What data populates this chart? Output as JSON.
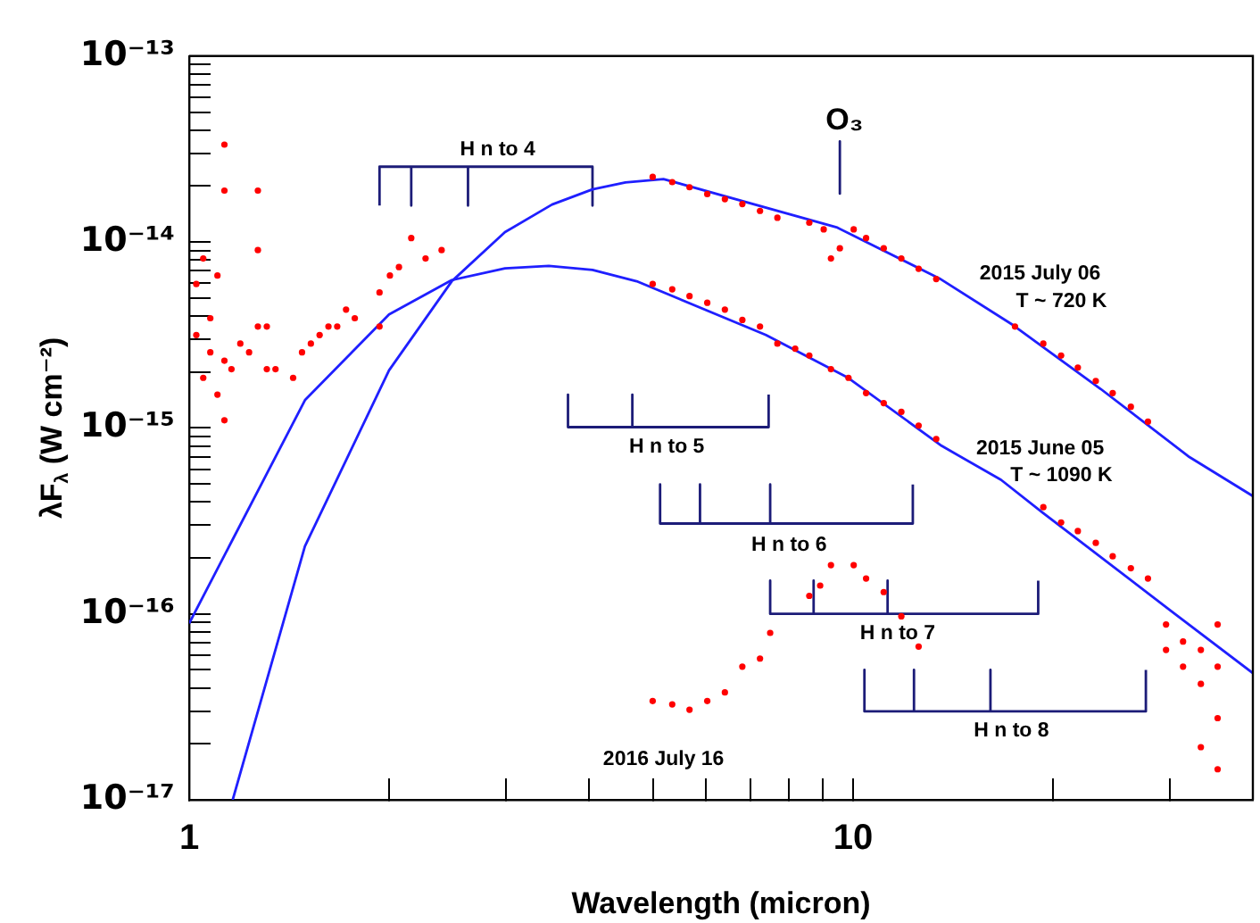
{
  "chart_data": {
    "type": "scatter",
    "xlabel": "Wavelength (micron)",
    "ylabel": "λF$_{λ}$ (W cm⁻²)",
    "log": "xy",
    "marker": "circle",
    "xlim": [
      1,
      40
    ],
    "xticks": [
      {
        "value": 1,
        "label": "1"
      },
      {
        "value": 2,
        "label": null
      },
      {
        "value": 3,
        "label": null
      },
      {
        "value": 4,
        "label": null
      },
      {
        "value": 5,
        "label": null
      },
      {
        "value": 6,
        "label": null
      },
      {
        "value": 7,
        "label": null
      },
      {
        "value": 8,
        "label": null
      },
      {
        "value": 9,
        "label": null
      },
      {
        "value": 10,
        "label": "10"
      },
      {
        "value": 20,
        "label": null
      },
      {
        "value": 30,
        "label": null
      }
    ],
    "ylim": [
      1e-17,
      1e-13
    ],
    "yticks": [
      {
        "value": 1e-17,
        "label": "10⁻¹⁷"
      },
      {
        "value": 2e-17,
        "label": null
      },
      {
        "value": 3e-17,
        "label": null
      },
      {
        "value": 4e-17,
        "label": null
      },
      {
        "value": 5e-17,
        "label": null
      },
      {
        "value": 6e-17,
        "label": null
      },
      {
        "value": 7e-17,
        "label": null
      },
      {
        "value": 8e-17,
        "label": null
      },
      {
        "value": 9e-17,
        "label": null
      },
      {
        "value": 1e-16,
        "label": "10⁻¹⁶"
      },
      {
        "value": 2e-16,
        "label": null
      },
      {
        "value": 3e-16,
        "label": null
      },
      {
        "value": 4e-16,
        "label": null
      },
      {
        "value": 5e-16,
        "label": null
      },
      {
        "value": 6e-16,
        "label": null
      },
      {
        "value": 7e-16,
        "label": null
      },
      {
        "value": 8e-16,
        "label": null
      },
      {
        "value": 9e-16,
        "label": null
      },
      {
        "value": 1e-15,
        "label": "10⁻¹⁵"
      },
      {
        "value": 2e-15,
        "label": null
      },
      {
        "value": 3e-15,
        "label": null
      },
      {
        "value": 4e-15,
        "label": null
      },
      {
        "value": 5e-15,
        "label": null
      },
      {
        "value": 6e-15,
        "label": null
      },
      {
        "value": 7e-15,
        "label": null
      },
      {
        "value": 8e-15,
        "label": null
      },
      {
        "value": 9e-15,
        "label": null
      },
      {
        "value": 1e-14,
        "label": "10⁻¹⁴"
      },
      {
        "value": 2e-14,
        "label": null
      },
      {
        "value": 3e-14,
        "label": null
      },
      {
        "value": 4e-14,
        "label": null
      },
      {
        "value": 5e-14,
        "label": null
      },
      {
        "value": 6e-14,
        "label": null
      },
      {
        "value": 7e-14,
        "label": null
      },
      {
        "value": 8e-14,
        "label": null
      },
      {
        "value": 9e-14,
        "label": null
      },
      {
        "value": 1e-13,
        "label": "10⁻¹³"
      }
    ],
    "series": [
      {
        "color": "#ff0000",
        "x": [
          1.025,
          1.025,
          1.05,
          1.05,
          1.076,
          1.076,
          1.103,
          1.103,
          1.13,
          1.13,
          1.13,
          1.13,
          1.158,
          1.194,
          1.231,
          1.269,
          1.269,
          1.269,
          1.309,
          1.309,
          1.349,
          1.434,
          1.479,
          1.525,
          1.572,
          1.621,
          1.671,
          1.723,
          1.776,
          1.935,
          1.935,
          2.006,
          2.07,
          2.16,
          2.27,
          2.4
        ],
        "values": [
          5.94e-15,
          3.16e-15,
          8.15e-15,
          1.86e-15,
          3.89e-15,
          2.55e-15,
          6.6e-15,
          1.51e-15,
          2.3e-15,
          1.1e-15,
          3.34e-14,
          1.89e-14,
          2.07e-15,
          2.84e-15,
          2.55e-15,
          1.89e-14,
          9.05e-15,
          3.51e-15,
          2.07e-15,
          3.51e-15,
          2.07e-15,
          1.86e-15,
          2.55e-15,
          2.84e-15,
          3.16e-15,
          3.51e-15,
          3.51e-15,
          4.33e-15,
          3.89e-15,
          5.35e-15,
          3.51e-15,
          6.6e-15,
          7.33e-15,
          1.05e-14,
          8.15e-15,
          9.05e-15
        ]
      },
      {
        "color": "#ff0000",
        "x": [
          4.99,
          5.34,
          5.67,
          6.03,
          6.41,
          6.81,
          7.24,
          7.69,
          8.59,
          9.03,
          9.26,
          9.55,
          10.02,
          10.46,
          11.12,
          11.82,
          12.55,
          13.34,
          17.53,
          19.34,
          20.57,
          21.8,
          23.2,
          24.6,
          26.2,
          27.8
        ],
        "values": [
          2.24e-14,
          2.1e-14,
          1.97e-14,
          1.81e-14,
          1.7e-14,
          1.6e-14,
          1.47e-14,
          1.35e-14,
          1.27e-14,
          1.17e-14,
          8.15e-15,
          9.25e-15,
          1.17e-14,
          1.05e-14,
          9.25e-15,
          8.15e-15,
          7.18e-15,
          6.32e-15,
          3.51e-15,
          2.84e-15,
          2.45e-15,
          2.11e-15,
          1.79e-15,
          1.54e-15,
          1.3e-15,
          1.08e-15
        ]
      },
      {
        "color": "#ff0000",
        "x": [
          4.99,
          5.34,
          5.67,
          6.03,
          6.41,
          6.81,
          7.24,
          7.69,
          8.18,
          8.59,
          9.26,
          9.84,
          10.46,
          11.12,
          11.82,
          12.55,
          13.34,
          19.34,
          20.57,
          21.8,
          23.2,
          24.6,
          26.2,
          27.8,
          29.6,
          29.6,
          31.4,
          31.4,
          33.4,
          33.4,
          35.4,
          35.4,
          35.4,
          33.4,
          35.4
        ],
        "values": [
          5.94e-15,
          5.57e-15,
          5.12e-15,
          4.71e-15,
          4.33e-15,
          3.81e-15,
          3.51e-15,
          2.84e-15,
          2.67e-15,
          2.45e-15,
          2.07e-15,
          1.86e-15,
          1.54e-15,
          1.36e-15,
          1.22e-15,
          1.03e-15,
          8.72e-16,
          3.75e-16,
          3.1e-16,
          2.79e-16,
          2.41e-16,
          2.04e-16,
          1.76e-16,
          1.55e-16,
          8.77e-17,
          6.4e-17,
          7.1e-17,
          5.2e-17,
          6.4e-17,
          4.2e-17,
          8.77e-17,
          5.2e-17,
          2.75e-17,
          1.92e-17,
          1.46e-17
        ]
      },
      {
        "color": "#ff0000",
        "x": [
          4.99,
          5.34,
          5.67,
          6.03,
          6.41,
          6.81,
          7.24,
          7.5,
          8.59,
          8.92,
          9.26,
          10.02,
          10.46,
          11.12,
          11.82,
          12.55
        ],
        "values": [
          3.4e-17,
          3.26e-17,
          3.05e-17,
          3.4e-17,
          3.78e-17,
          5.2e-17,
          5.75e-17,
          7.9e-17,
          1.25e-16,
          1.42e-16,
          1.83e-16,
          1.83e-16,
          1.55e-16,
          1.31e-16,
          9.7e-17,
          6.67e-17
        ]
      },
      {
        "type": "line",
        "marker": "none",
        "color": "#1f1fff",
        "x": [
          1.163,
          1.494,
          2.0,
          2.486,
          2.99,
          3.52,
          4.05,
          4.54,
          5.18,
          9.44,
          13.49,
          17.4,
          23.6,
          32.1,
          40
        ],
        "values": [
          1e-17,
          2.31e-16,
          2.04e-15,
          6.15e-15,
          1.13e-14,
          1.59e-14,
          1.92e-14,
          2.09e-14,
          2.18e-14,
          1.2e-14,
          6.37e-15,
          3.58e-15,
          1.62e-15,
          6.97e-16,
          4.3e-16
        ]
      },
      {
        "type": "line",
        "marker": "none",
        "color": "#1f1fff",
        "x": [
          1.0,
          1.494,
          2.0,
          2.486,
          2.99,
          3.48,
          4.05,
          4.72,
          7.39,
          9.83,
          13.6,
          16.7,
          19.3,
          30.2,
          40
        ],
        "values": [
          8.89e-17,
          1.41e-15,
          4.08e-15,
          6.24e-15,
          7.22e-15,
          7.43e-15,
          7.08e-15,
          6.15e-15,
          3.16e-15,
          1.86e-15,
          8e-16,
          5.26e-16,
          3.5e-16,
          1.03e-16,
          4.8e-17
        ]
      },
      {
        "type": "line",
        "marker": "none",
        "color": "#1c1c78",
        "x": [
          1.935,
          1.935,
          2.16,
          2.16,
          2.16,
          2.63,
          2.63,
          2.63,
          4.05,
          4.05
        ],
        "values": [
          1.57e-14,
          2.54e-14,
          2.54e-14,
          1.57e-14,
          2.54e-14,
          2.54e-14,
          1.57e-14,
          2.54e-14,
          2.54e-14,
          1.57e-14
        ]
      },
      {
        "type": "line",
        "marker": "none",
        "color": "#1c1c78",
        "x": [
          3.72,
          3.72,
          4.65,
          4.65,
          4.65,
          7.46,
          7.46
        ],
        "values": [
          1.51e-15,
          1.01e-15,
          1.01e-15,
          1.51e-15,
          1.01e-15,
          1.01e-15,
          1.51e-15
        ]
      },
      {
        "type": "line",
        "marker": "none",
        "color": "#1c1c78",
        "x": [
          5.12,
          5.12,
          5.88,
          5.88,
          5.88,
          7.5,
          7.5,
          7.5,
          12.3,
          12.3
        ],
        "values": [
          4.97e-16,
          3.06e-16,
          3.06e-16,
          4.97e-16,
          3.06e-16,
          3.06e-16,
          4.97e-16,
          3.06e-16,
          3.06e-16,
          4.97e-16
        ]
      },
      {
        "type": "line",
        "marker": "none",
        "color": "#1c1c78",
        "x": [
          7.5,
          7.5,
          8.72,
          8.72,
          8.72,
          11.27,
          11.27,
          11.27,
          19.0,
          19.0
        ],
        "values": [
          1.51e-16,
          1e-16,
          1e-16,
          1.51e-16,
          1e-16,
          1e-16,
          1.51e-16,
          1e-16,
          1e-16,
          1.51e-16
        ]
      },
      {
        "type": "line",
        "marker": "none",
        "color": "#1c1c78",
        "x": [
          10.4,
          10.4,
          12.35,
          12.35,
          12.35,
          16.1,
          16.1,
          16.1,
          27.6,
          27.6
        ],
        "values": [
          5e-17,
          2.99e-17,
          2.99e-17,
          5e-17,
          2.99e-17,
          2.99e-17,
          5e-17,
          2.99e-17,
          2.99e-17,
          5e-17
        ]
      },
      {
        "type": "line",
        "marker": "none",
        "color": "#1c1c78",
        "x": [
          9.55,
          9.55
        ],
        "values": [
          3.48e-14,
          1.82e-14
        ]
      }
    ],
    "annotations": [
      "H n to 4",
      "H n to 5",
      "H n to 6",
      "H n to 7",
      "H n to 8",
      "O₃",
      "2015 July 06",
      "T ~ 720 K",
      "2015 June 05",
      "T ~ 1090 K",
      "2016 July 16"
    ]
  }
}
